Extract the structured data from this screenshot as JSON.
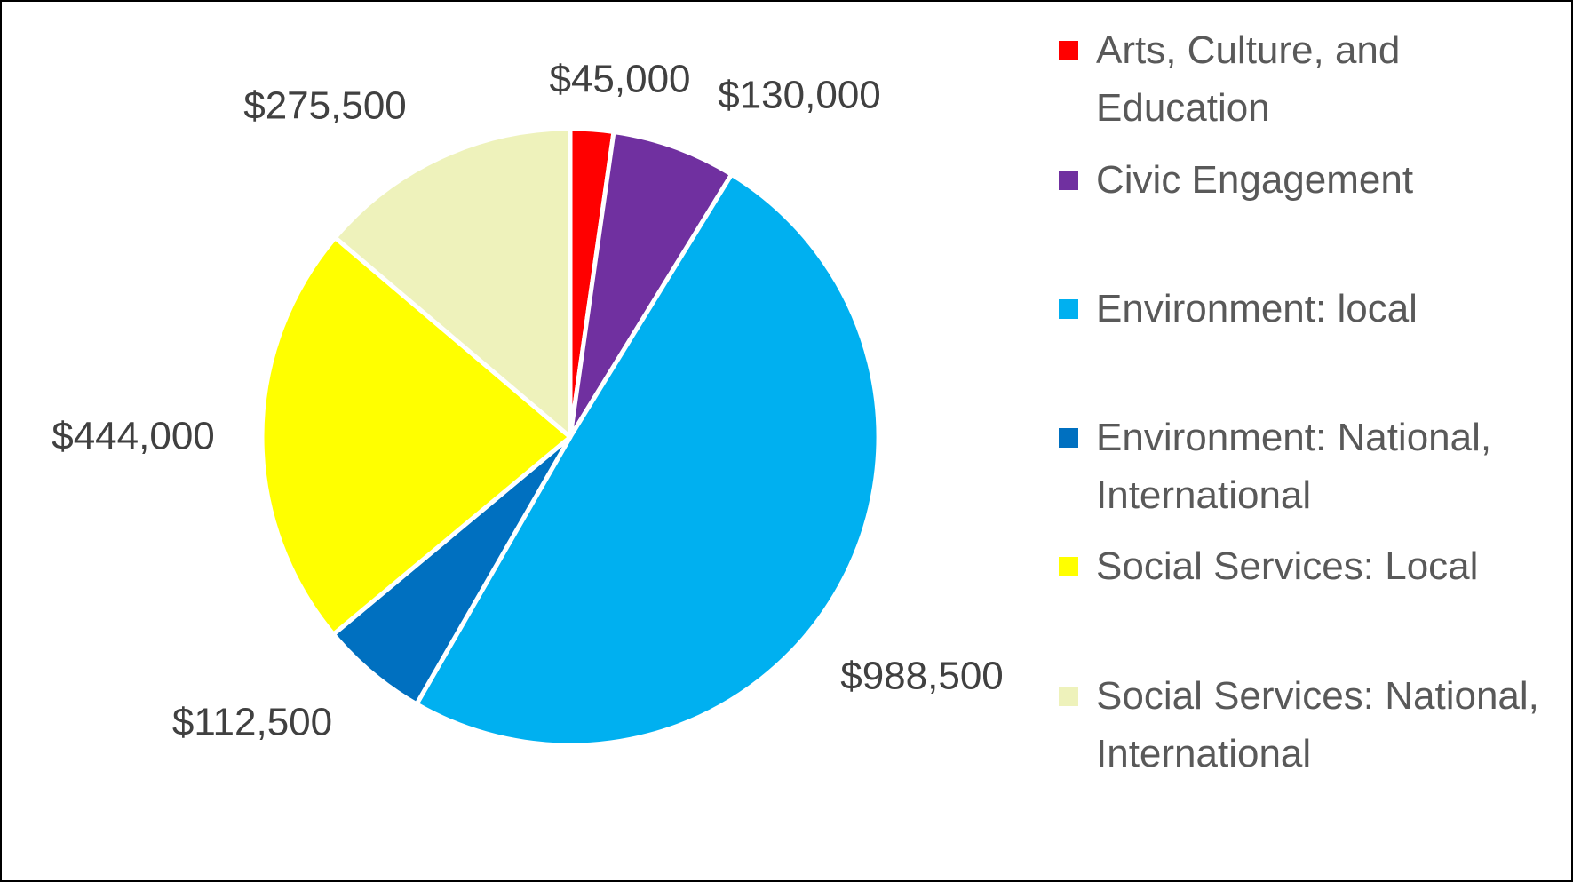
{
  "chart_data": {
    "type": "pie",
    "title": "",
    "categories": [
      "Arts, Culture, and Education",
      "Civic Engagement",
      "Environment: local",
      "Environment: National, International",
      "Social Services: Local",
      "Social Services: National, International"
    ],
    "values": [
      45000,
      130000,
      988500,
      112500,
      444000,
      275500
    ],
    "data_labels": [
      "$45,000",
      "$130,000",
      "$988,500",
      "$112,500",
      "$444,000",
      "$275,500"
    ],
    "colors": [
      "#FF0000",
      "#7030A0",
      "#00B0F0",
      "#0070C0",
      "#FFFF00",
      "#EEF2BB"
    ],
    "start_angle": "top, clockwise",
    "legend_placement": "right"
  }
}
